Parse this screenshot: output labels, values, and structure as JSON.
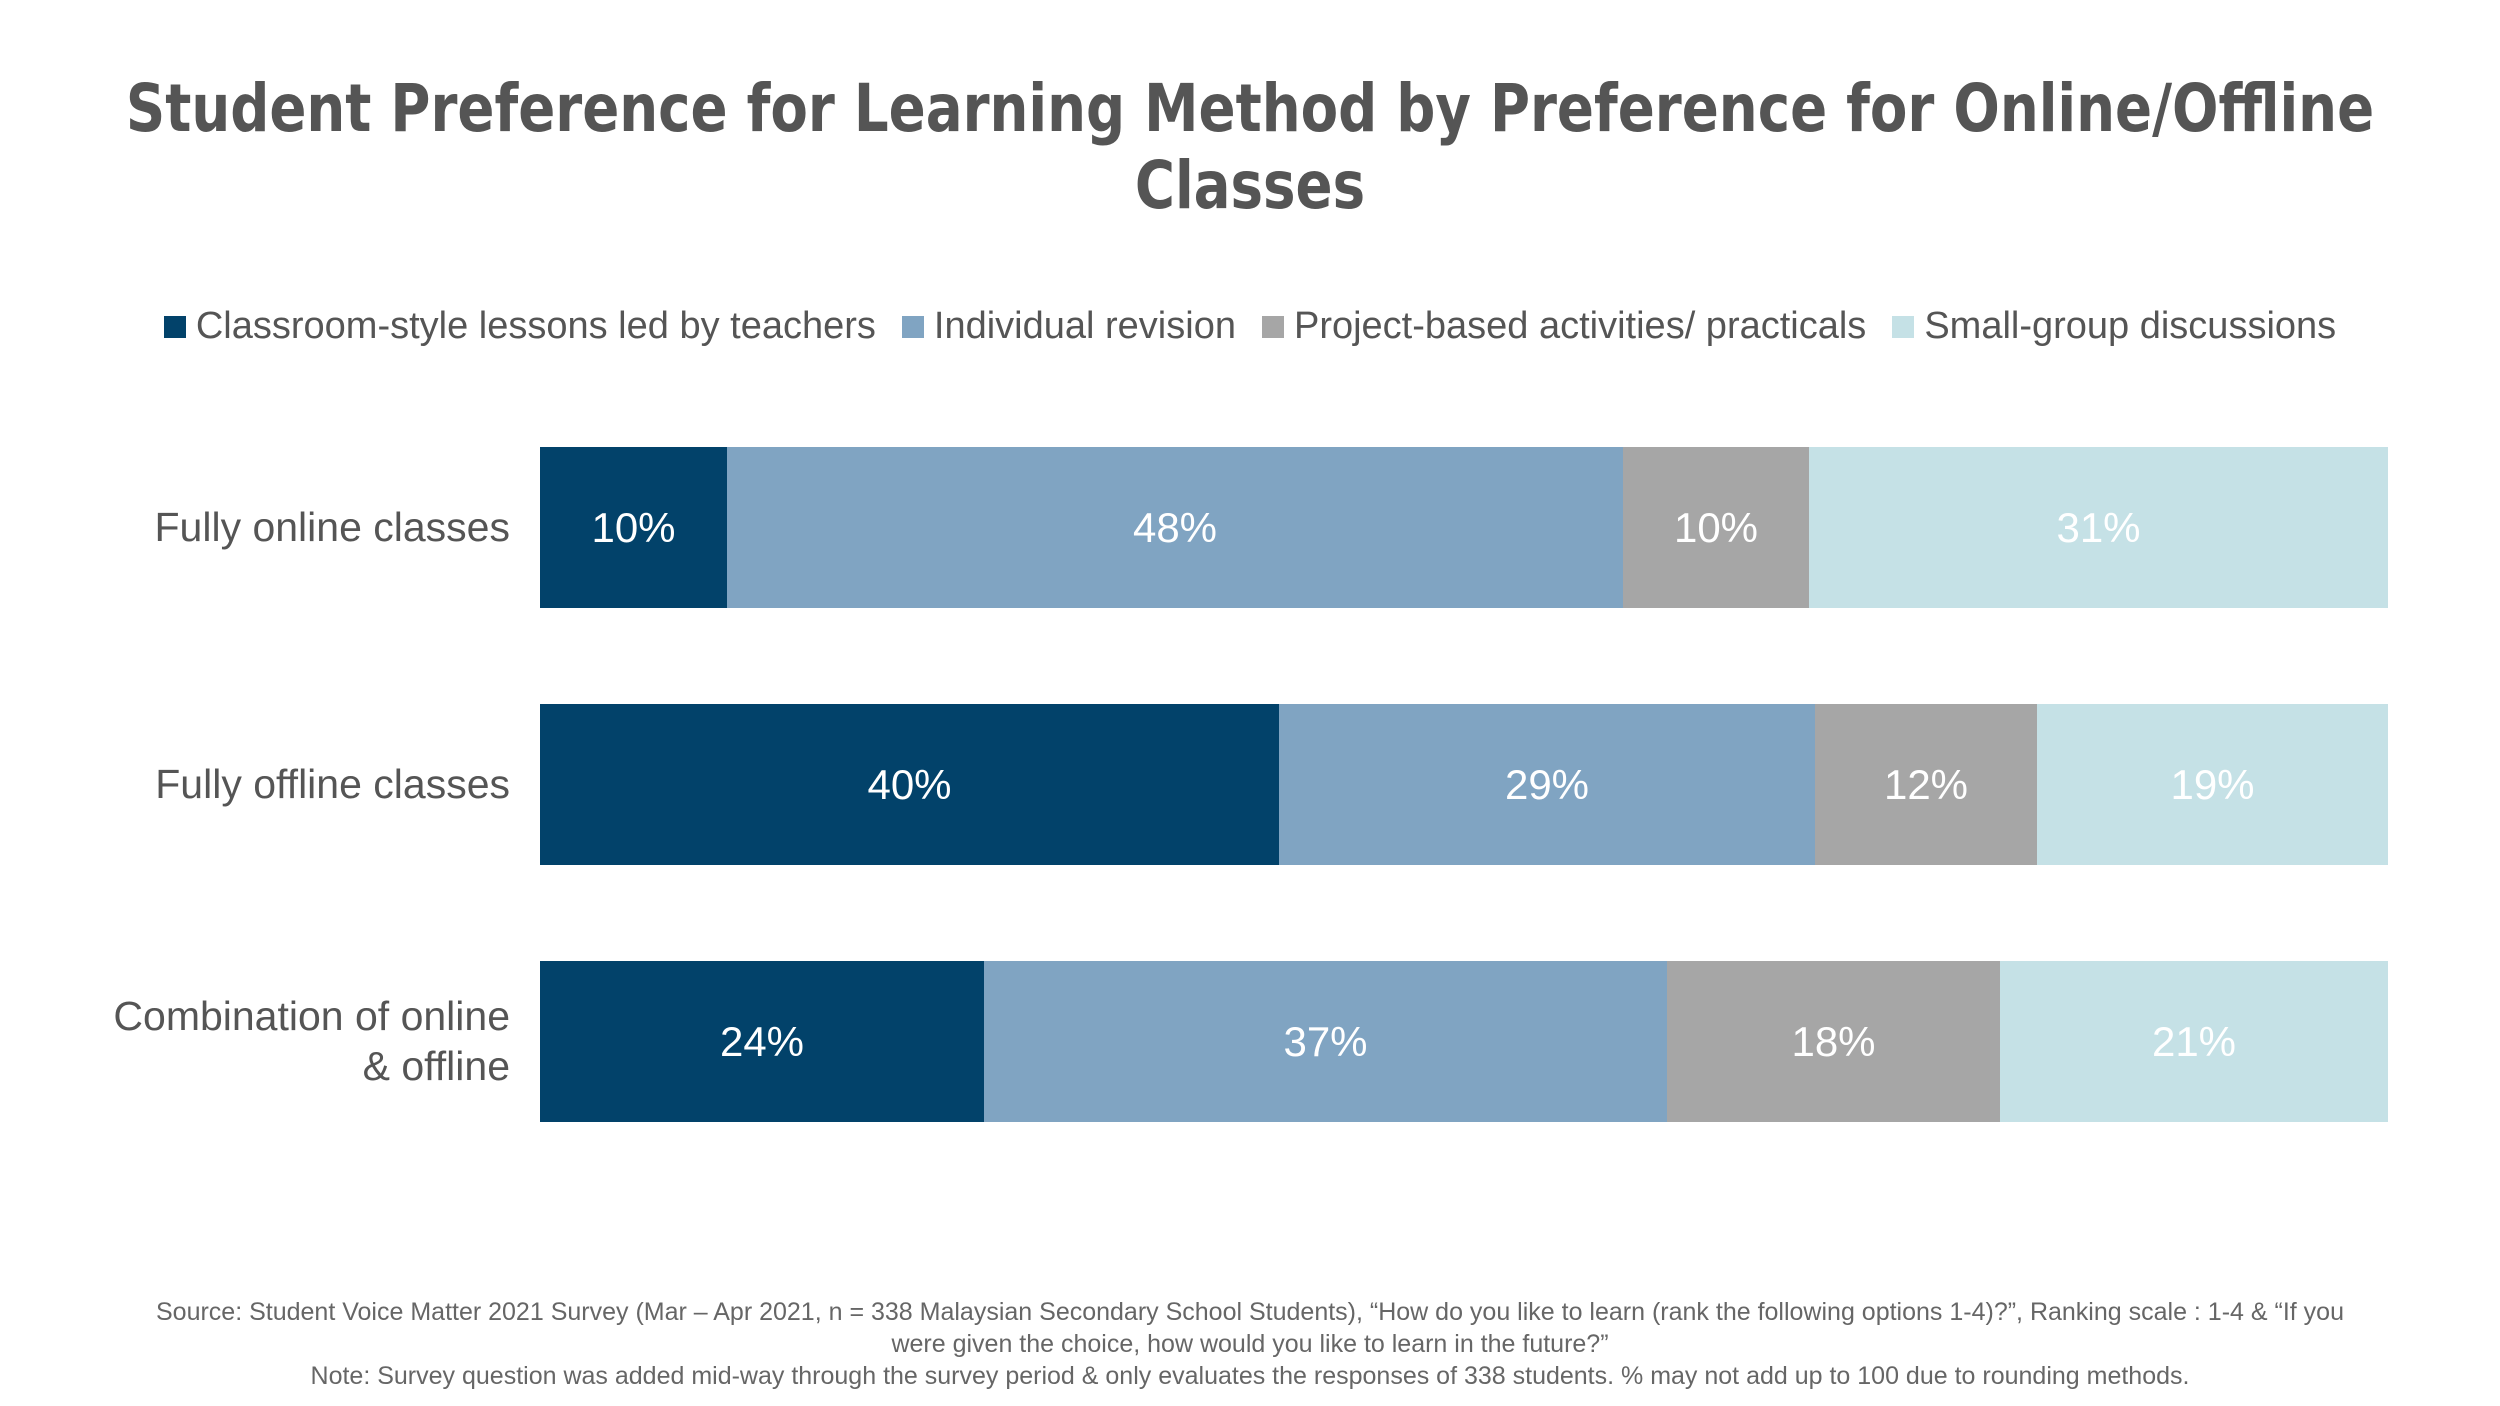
{
  "chart_data": {
    "type": "bar",
    "orientation": "horizontal",
    "stacked": true,
    "title": "Student Preference for Learning Method by Preference for Online/Offline Classes",
    "categories": [
      "Fully online classes",
      "Fully offline classes",
      "Combination of online & offline"
    ],
    "category_lines": [
      [
        "Fully online classes"
      ],
      [
        "Fully offline classes"
      ],
      [
        "Combination of online",
        "& offline"
      ]
    ],
    "series": [
      {
        "name": "Classroom-style lessons led by teachers",
        "color": "#02426A",
        "values": [
          10,
          40,
          24
        ],
        "labels": [
          "10%",
          "40%",
          "24%"
        ]
      },
      {
        "name": "Individual revision",
        "color": "#80A4C2",
        "values": [
          48,
          29,
          37
        ],
        "labels": [
          "48%",
          "29%",
          "37%"
        ]
      },
      {
        "name": "Project-based activities/ practicals",
        "color": "#A6A6A6",
        "values": [
          10,
          12,
          18
        ],
        "labels": [
          "10%",
          "12%",
          "18%"
        ]
      },
      {
        "name": "Small-group discussions",
        "color": "#C5E1E6",
        "values": [
          31,
          19,
          21
        ],
        "labels": [
          "31%",
          "19%",
          "21%"
        ]
      }
    ],
    "legend_position": "top",
    "grid": false
  },
  "footnote": {
    "line1": "Source: Student Voice Matter 2021 Survey (Mar – Apr 2021, n = 338 Malaysian Secondary School Students), “How do you like to learn (rank the following options 1-4)?”,  Ranking scale : 1-4 & “If you",
    "line2": "were given the choice, how would you like to learn in the future?”",
    "line3": "Note: Survey question was added mid-way through the survey period & only evaluates the responses of 338 students. % may not add up to 100 due to rounding  methods."
  }
}
